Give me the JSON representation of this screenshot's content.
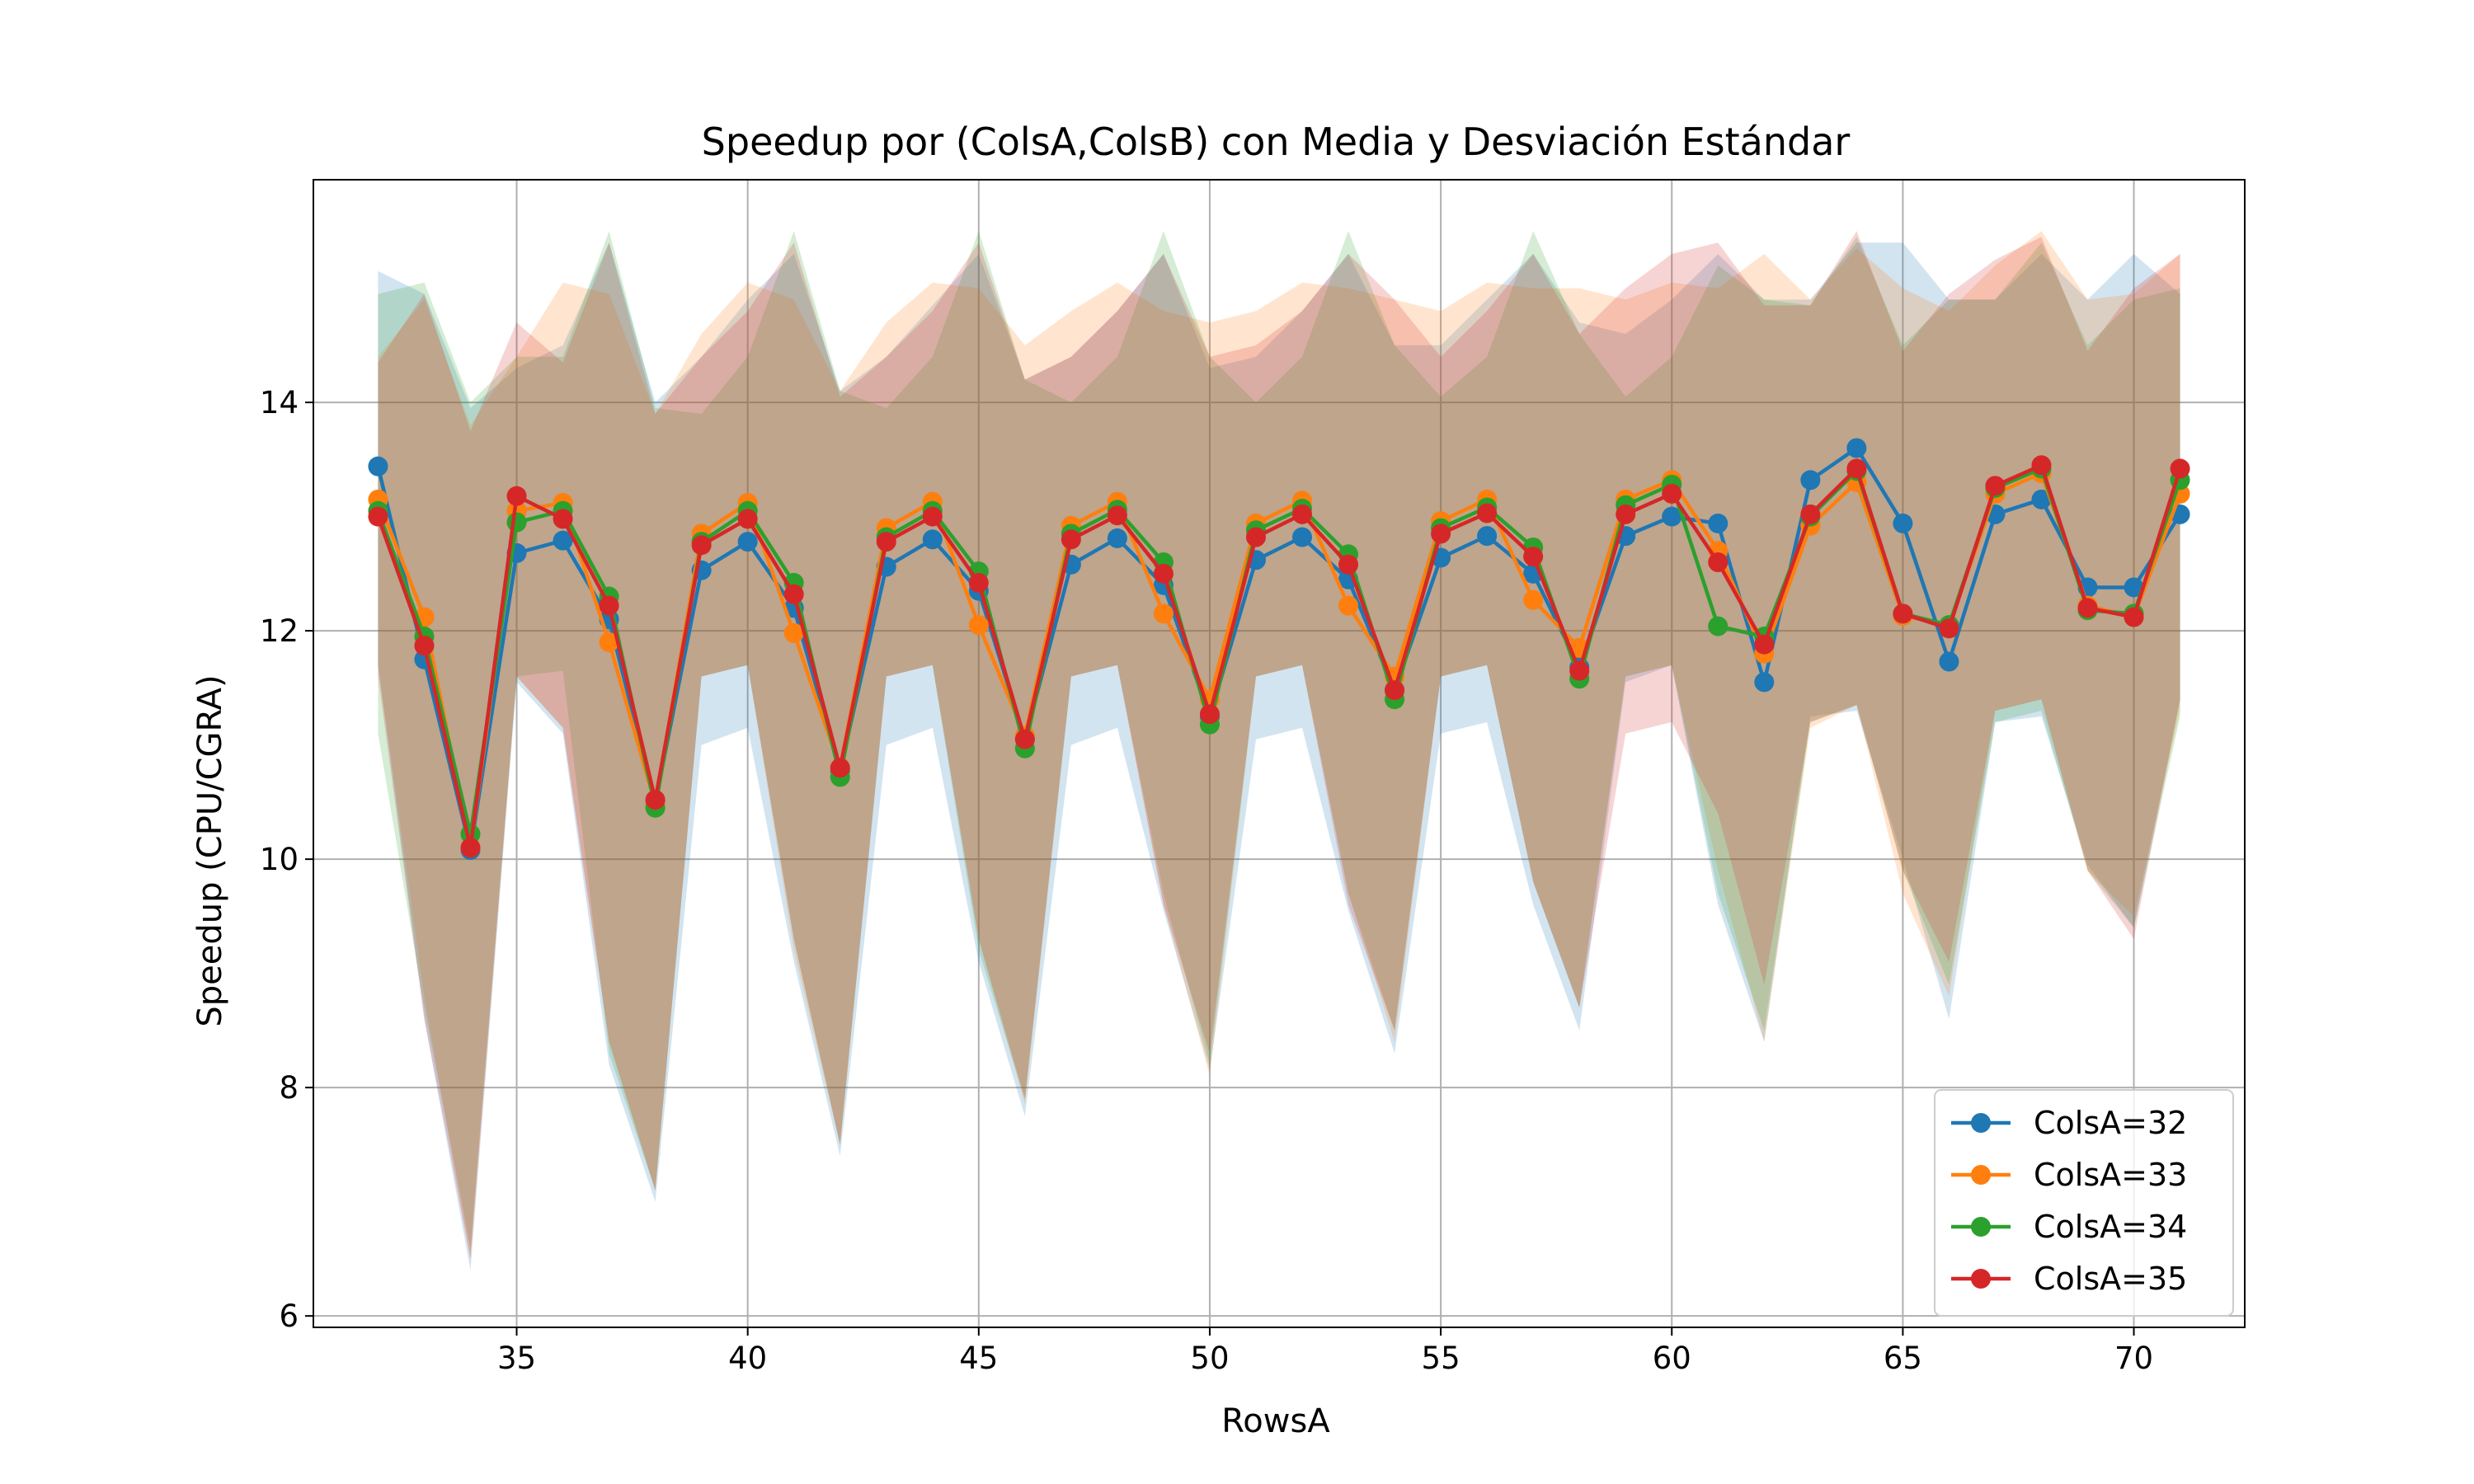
{
  "chart_data": {
    "type": "line",
    "title": "Speedup por (ColsA,ColsB) con Media y Desviación Estándar",
    "xlabel": "RowsA",
    "ylabel": "Speedup (CPU/CGRA)",
    "xlim": [
      30.6,
      72.4
    ],
    "ylim": [
      5.9,
      15.95
    ],
    "xticks": [
      35,
      40,
      45,
      50,
      55,
      60,
      65,
      70
    ],
    "yticks": [
      6,
      8,
      10,
      12,
      14
    ],
    "grid": true,
    "legend_position": "lower-right",
    "x": [
      32,
      33,
      34,
      35,
      36,
      37,
      38,
      39,
      40,
      41,
      42,
      43,
      44,
      45,
      46,
      47,
      48,
      49,
      50,
      51,
      52,
      53,
      54,
      55,
      56,
      57,
      58,
      59,
      60,
      61,
      62,
      63,
      64,
      65,
      66,
      67,
      68,
      69,
      70,
      71
    ],
    "series": [
      {
        "name": "ColsA=32",
        "color": "#1f77b4",
        "mean": [
          13.44,
          11.75,
          10.08,
          12.68,
          12.79,
          12.1,
          10.5,
          12.53,
          12.78,
          12.2,
          10.78,
          12.56,
          12.8,
          12.35,
          11.05,
          12.58,
          12.81,
          12.4,
          11.25,
          12.62,
          12.82,
          12.45,
          11.48,
          12.64,
          12.83,
          12.5,
          11.68,
          12.83,
          13.0,
          12.94,
          11.55,
          13.32,
          13.6,
          12.94,
          11.73,
          13.02,
          13.15,
          12.38,
          12.38,
          13.02
        ],
        "upper": [
          15.15,
          14.95,
          13.95,
          14.3,
          14.5,
          15.4,
          14.0,
          14.4,
          14.9,
          15.3,
          14.1,
          14.4,
          14.85,
          15.3,
          14.2,
          14.4,
          14.8,
          15.3,
          14.3,
          14.4,
          14.8,
          15.3,
          14.5,
          14.5,
          14.9,
          15.3,
          14.7,
          14.6,
          14.9,
          15.3,
          14.9,
          14.9,
          15.4,
          15.4,
          14.9,
          14.9,
          15.3,
          14.9,
          15.3,
          14.95
        ],
        "lower": [
          11.7,
          8.6,
          6.4,
          11.55,
          11.1,
          8.2,
          7.0,
          11.0,
          11.15,
          9.1,
          7.4,
          11.0,
          11.15,
          9.1,
          7.75,
          11.0,
          11.15,
          9.55,
          8.15,
          11.05,
          11.15,
          9.55,
          8.3,
          11.1,
          11.2,
          9.6,
          8.5,
          11.55,
          11.7,
          9.6,
          8.4,
          11.25,
          11.3,
          10.0,
          8.6,
          11.2,
          11.25,
          9.95,
          9.4,
          11.4
        ]
      },
      {
        "name": "ColsA=33",
        "color": "#ff7f0e",
        "mean": [
          13.15,
          12.12,
          10.1,
          13.05,
          13.12,
          11.9,
          10.48,
          12.85,
          13.12,
          11.98,
          10.8,
          12.9,
          13.13,
          12.05,
          11.08,
          12.92,
          13.13,
          12.15,
          11.4,
          12.94,
          13.14,
          12.22,
          11.6,
          12.96,
          13.15,
          12.27,
          11.85,
          13.15,
          13.32,
          12.7,
          11.8,
          12.92,
          13.3,
          12.13,
          12.05,
          13.2,
          13.38,
          12.22,
          12.12,
          13.2
        ],
        "upper": [
          14.4,
          14.9,
          13.8,
          14.4,
          15.05,
          14.95,
          13.9,
          14.6,
          15.05,
          14.9,
          14.1,
          14.7,
          15.05,
          15.0,
          14.5,
          14.8,
          15.05,
          14.8,
          14.7,
          14.8,
          15.05,
          15.0,
          14.9,
          14.8,
          15.05,
          15.0,
          15.0,
          14.9,
          15.05,
          15.0,
          15.3,
          14.9,
          15.35,
          15.0,
          14.8,
          15.2,
          15.5,
          14.9,
          14.95,
          15.3
        ],
        "lower": [
          11.7,
          8.8,
          6.5,
          11.6,
          11.15,
          8.4,
          7.1,
          11.6,
          11.7,
          9.2,
          7.5,
          11.6,
          11.7,
          9.3,
          7.85,
          11.6,
          11.7,
          9.6,
          8.1,
          11.6,
          11.7,
          9.7,
          8.4,
          11.6,
          11.7,
          9.8,
          8.7,
          11.6,
          11.7,
          9.9,
          8.4,
          11.15,
          11.35,
          9.7,
          8.8,
          11.3,
          11.4,
          9.9,
          9.5,
          11.3
        ]
      },
      {
        "name": "ColsA=34",
        "color": "#2ca02c",
        "mean": [
          13.05,
          11.95,
          10.22,
          12.95,
          13.05,
          12.3,
          10.45,
          12.78,
          13.05,
          12.42,
          10.72,
          12.82,
          13.05,
          12.52,
          10.97,
          12.85,
          13.06,
          12.6,
          11.18,
          12.88,
          13.07,
          12.67,
          11.4,
          12.9,
          13.08,
          12.73,
          11.58,
          13.1,
          13.28,
          12.04,
          11.95,
          13.0,
          13.4,
          12.15,
          12.05,
          13.25,
          13.42,
          12.18,
          12.15,
          13.32
        ],
        "upper": [
          14.95,
          15.05,
          14.0,
          14.4,
          14.4,
          15.5,
          13.95,
          13.9,
          14.4,
          15.5,
          14.1,
          13.95,
          14.4,
          15.5,
          14.2,
          14.0,
          14.4,
          15.5,
          14.4,
          14.0,
          14.4,
          15.5,
          14.5,
          14.05,
          14.4,
          15.5,
          14.6,
          14.05,
          14.4,
          15.2,
          14.9,
          14.85,
          15.45,
          14.5,
          14.9,
          14.9,
          15.4,
          14.5,
          14.9,
          15.0
        ],
        "lower": [
          11.1,
          8.7,
          6.6,
          11.6,
          11.65,
          8.3,
          7.1,
          11.6,
          11.7,
          9.3,
          7.5,
          11.6,
          11.7,
          9.2,
          7.9,
          11.6,
          11.7,
          9.7,
          8.2,
          11.6,
          11.7,
          9.7,
          8.5,
          11.6,
          11.7,
          9.8,
          8.7,
          11.6,
          11.7,
          9.7,
          8.5,
          11.2,
          11.35,
          9.9,
          8.9,
          11.2,
          11.3,
          9.9,
          9.4,
          11.25
        ]
      },
      {
        "name": "ColsA=35",
        "color": "#d62728",
        "mean": [
          13.0,
          11.87,
          10.1,
          13.18,
          12.98,
          12.22,
          10.52,
          12.75,
          12.98,
          12.32,
          10.8,
          12.78,
          13.0,
          12.42,
          11.05,
          12.8,
          13.01,
          12.5,
          11.27,
          12.82,
          13.02,
          12.58,
          11.48,
          12.85,
          13.03,
          12.65,
          11.65,
          13.02,
          13.2,
          12.6,
          11.88,
          13.02,
          13.42,
          12.15,
          12.02,
          13.27,
          13.45,
          12.2,
          12.12,
          13.42
        ],
        "upper": [
          14.35,
          14.95,
          13.75,
          14.7,
          14.35,
          15.4,
          13.9,
          14.4,
          14.8,
          15.4,
          14.05,
          14.4,
          14.8,
          15.4,
          14.2,
          14.4,
          14.8,
          15.3,
          14.4,
          14.5,
          14.8,
          15.3,
          14.9,
          14.4,
          14.8,
          15.3,
          14.6,
          15.0,
          15.3,
          15.4,
          14.85,
          14.85,
          15.5,
          14.45,
          14.95,
          15.25,
          15.45,
          14.45,
          15.0,
          15.3
        ],
        "lower": [
          11.6,
          8.6,
          6.5,
          11.6,
          11.15,
          8.4,
          7.1,
          11.6,
          11.7,
          9.3,
          7.5,
          11.6,
          11.7,
          9.3,
          7.9,
          11.6,
          11.7,
          9.6,
          8.3,
          11.6,
          11.7,
          9.6,
          8.5,
          11.6,
          11.7,
          9.8,
          8.7,
          11.1,
          11.2,
          10.4,
          8.9,
          11.2,
          11.35,
          9.9,
          9.1,
          11.3,
          11.4,
          9.9,
          9.3,
          11.4
        ]
      }
    ]
  }
}
